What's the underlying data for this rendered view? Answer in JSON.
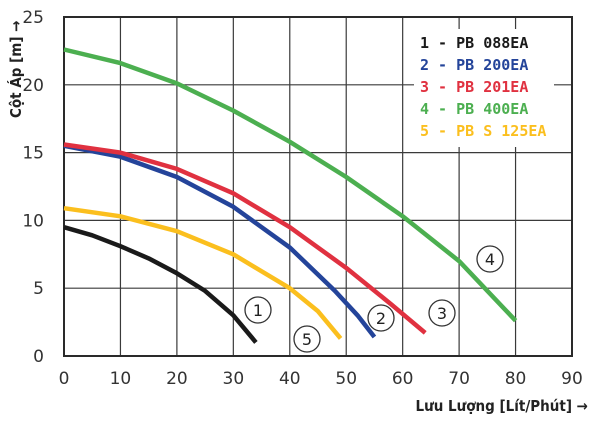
{
  "chart_data": {
    "type": "line",
    "xlabel": "Lưu Lượng [Lít/Phút]",
    "ylabel": "Cột Áp [m]",
    "xlim": [
      0,
      90
    ],
    "ylim": [
      0,
      25
    ],
    "xticks": [
      0,
      10,
      20,
      30,
      40,
      50,
      60,
      70,
      80,
      90
    ],
    "yticks": [
      0,
      5,
      10,
      15,
      20,
      25
    ],
    "grid": true,
    "legend_position": "top-right",
    "series": [
      {
        "name": "1 - PB 088EA",
        "marker_label": "1",
        "color": "#1a1a1a",
        "points": [
          [
            0,
            9.5
          ],
          [
            5,
            8.9
          ],
          [
            10,
            8.1
          ],
          [
            15,
            7.2
          ],
          [
            20,
            6.1
          ],
          [
            25,
            4.8
          ],
          [
            30,
            3.0
          ],
          [
            34,
            1.0
          ]
        ]
      },
      {
        "name": "2 - PB 200EA",
        "marker_label": "2",
        "color": "#24449a",
        "points": [
          [
            0,
            15.5
          ],
          [
            10,
            14.7
          ],
          [
            20,
            13.2
          ],
          [
            30,
            11.0
          ],
          [
            40,
            8.0
          ],
          [
            48,
            4.8
          ],
          [
            52,
            3.0
          ],
          [
            55,
            1.4
          ]
        ]
      },
      {
        "name": "3 - PB 201EA",
        "marker_label": "3",
        "color": "#e03140",
        "points": [
          [
            0,
            15.6
          ],
          [
            10,
            15.0
          ],
          [
            20,
            13.8
          ],
          [
            30,
            12.0
          ],
          [
            40,
            9.5
          ],
          [
            50,
            6.5
          ],
          [
            58,
            3.8
          ],
          [
            64,
            1.7
          ]
        ]
      },
      {
        "name": "4 - PB 400EA",
        "marker_label": "4",
        "color": "#4caf50",
        "points": [
          [
            0,
            22.6
          ],
          [
            10,
            21.6
          ],
          [
            20,
            20.1
          ],
          [
            30,
            18.1
          ],
          [
            40,
            15.8
          ],
          [
            50,
            13.2
          ],
          [
            60,
            10.3
          ],
          [
            70,
            7.0
          ],
          [
            80,
            2.6
          ]
        ]
      },
      {
        "name": "5 - PB S 125EA",
        "marker_label": "5",
        "color": "#fbbf1e",
        "points": [
          [
            0,
            10.9
          ],
          [
            10,
            10.3
          ],
          [
            20,
            9.2
          ],
          [
            30,
            7.5
          ],
          [
            40,
            5.0
          ],
          [
            45,
            3.3
          ],
          [
            49,
            1.3
          ]
        ]
      }
    ]
  }
}
